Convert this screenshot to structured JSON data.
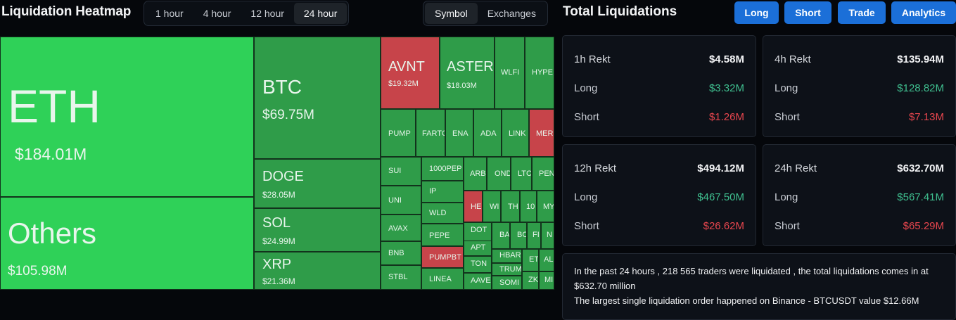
{
  "header": {
    "title": "Liquidation Heatmap",
    "time_tabs": [
      "1 hour",
      "4 hour",
      "12 hour",
      "24 hour"
    ],
    "active_time_tab": "24 hour",
    "view_tabs": [
      "Symbol",
      "Exchanges"
    ],
    "active_view_tab": "Symbol"
  },
  "heatmap": {
    "eth": {
      "name": "ETH",
      "value": "$184.01M"
    },
    "others": {
      "name": "Others",
      "value": "$105.98M"
    },
    "btc": {
      "name": "BTC",
      "value": "$69.75M"
    },
    "doge": {
      "name": "DOGE",
      "value": "$28.05M"
    },
    "sol": {
      "name": "SOL",
      "value": "$24.99M"
    },
    "xrp": {
      "name": "XRP",
      "value": "$21.36M"
    },
    "avnt": {
      "name": "AVNT",
      "value": "$19.32M"
    },
    "aster": {
      "name": "ASTER",
      "value": "$18.03M"
    },
    "wlfi": "WLFI",
    "hype": "HYPE",
    "pump": "PUMP",
    "fartc": "FARTC",
    "ena": "ENA",
    "ada": "ADA",
    "link": "LINK",
    "mer": "MER",
    "sui": "SUI",
    "pep1000": "1000PEP",
    "arb": "ARB",
    "ond": "OND",
    "ltc": "LTC",
    "pen": "PEN",
    "uni": "UNI",
    "ip": "IP",
    "he": "HE",
    "wi": "WI",
    "th": "TH",
    "t10": "10",
    "my": "MY",
    "avax": "AVAX",
    "wld": "WLD",
    "pepe": "PEPE",
    "dot": "DOT",
    "ba": "BA",
    "bc": "BC",
    "fi": "FI",
    "n": "N",
    "bnb": "BNB",
    "pumpbt": "PUMPBT",
    "apt": "APT",
    "hbar": "HBAR",
    "et": "ET",
    "al": "AL",
    "stbl": "STBL",
    "linea": "LINEA",
    "ton": "TON",
    "trum": "TRUM",
    "aave": "AAVE",
    "somi": "SOMI",
    "zk": "ZK",
    "mi": "MI"
  },
  "total": {
    "title": "Total Liquidations",
    "buttons": [
      "Long",
      "Short",
      "Trade",
      "Analytics"
    ],
    "cards": [
      {
        "head": "1h Rekt",
        "total": "$4.58M",
        "long_label": "Long",
        "long": "$3.32M",
        "short_label": "Short",
        "short": "$1.26M"
      },
      {
        "head": "4h Rekt",
        "total": "$135.94M",
        "long_label": "Long",
        "long": "$128.82M",
        "short_label": "Short",
        "short": "$7.13M"
      },
      {
        "head": "12h Rekt",
        "total": "$494.12M",
        "long_label": "Long",
        "long": "$467.50M",
        "short_label": "Short",
        "short": "$26.62M"
      },
      {
        "head": "24h Rekt",
        "total": "$632.70M",
        "long_label": "Long",
        "long": "$567.41M",
        "short_label": "Short",
        "short": "$65.29M"
      }
    ],
    "summary_line1": "In the past 24 hours , 218 565 traders were liquidated , the total liquidations comes in at $632.70 million",
    "summary_line2": "The largest single liquidation order happened on Binance - BTCUSDT value $12.66M"
  },
  "colors": {
    "long_green": "#3fbf8f",
    "short_red": "#e8464e",
    "accent_blue": "#1b6fd8",
    "tile_green": "#2f9c49",
    "tile_bright": "#2fd158",
    "tile_red": "#c7444a"
  }
}
